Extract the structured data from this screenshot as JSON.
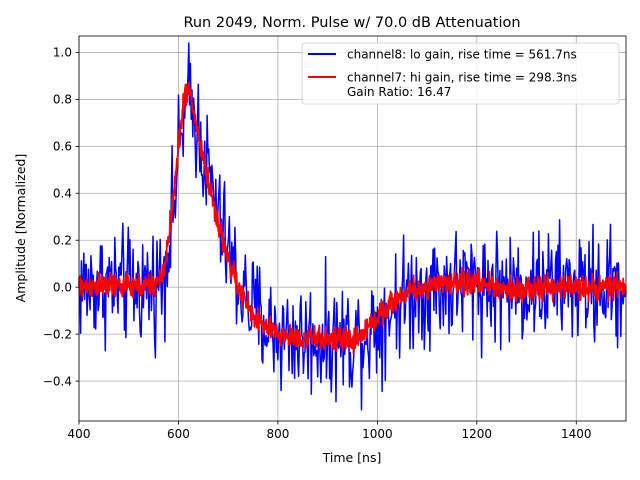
{
  "chart_data": {
    "type": "line",
    "title": "Run 2049, Norm. Pulse w/ 70.0 dB Attenuation",
    "xlabel": "Time [ns]",
    "ylabel": "Amplitude [Normalized]",
    "xlim": [
      400,
      1500
    ],
    "ylim": [
      -0.57,
      1.07
    ],
    "xticks": [
      400,
      600,
      800,
      1000,
      1200,
      1400
    ],
    "yticks": [
      -0.4,
      -0.2,
      0.0,
      0.2,
      0.4,
      0.6,
      0.8,
      1.0
    ],
    "xtick_labels": [
      "400",
      "600",
      "800",
      "1000",
      "1200",
      "1400"
    ],
    "ytick_labels": [
      "−0.4",
      "−0.2",
      "0.0",
      "0.2",
      "0.4",
      "0.6",
      "0.8",
      "1.0"
    ],
    "grid": true,
    "legend": "top-right",
    "series": [
      {
        "name": "channel8: lo gain, rise time = 561.7ns",
        "color": "#0000ff",
        "noise": 0.12,
        "x": [
          400,
          450,
          500,
          550,
          570,
          590,
          610,
          620,
          640,
          660,
          680,
          700,
          720,
          750,
          780,
          800,
          850,
          900,
          950,
          970,
          990,
          1020,
          1060,
          1100,
          1150,
          1200,
          1250,
          1300,
          1350,
          1400,
          1450,
          1500
        ],
        "y": [
          0.0,
          0.01,
          0.0,
          0.01,
          0.05,
          0.35,
          0.72,
          0.8,
          0.68,
          0.48,
          0.3,
          0.15,
          0.02,
          -0.1,
          -0.17,
          -0.2,
          -0.22,
          -0.22,
          -0.22,
          -0.2,
          -0.17,
          -0.1,
          -0.03,
          0.0,
          0.01,
          0.02,
          0.0,
          0.0,
          0.01,
          0.0,
          0.0,
          0.0
        ]
      },
      {
        "name": "channel7: hi gain, rise time = 298.3ns",
        "color": "#ff0000",
        "noise": 0.025,
        "x": [
          400,
          450,
          500,
          550,
          570,
          590,
          610,
          620,
          640,
          660,
          680,
          700,
          720,
          750,
          780,
          800,
          850,
          900,
          950,
          970,
          990,
          1020,
          1060,
          1100,
          1150,
          1200,
          1250,
          1300,
          1350,
          1400,
          1450,
          1500
        ],
        "y": [
          0.0,
          0.01,
          0.0,
          0.01,
          0.05,
          0.38,
          0.8,
          0.85,
          0.65,
          0.45,
          0.27,
          0.12,
          0.0,
          -0.12,
          -0.18,
          -0.2,
          -0.22,
          -0.22,
          -0.23,
          -0.2,
          -0.15,
          -0.08,
          -0.02,
          0.0,
          0.02,
          0.02,
          0.0,
          -0.01,
          0.0,
          0.0,
          0.0,
          0.0
        ]
      }
    ],
    "legend_extra": "Gain Ratio: 16.47"
  }
}
